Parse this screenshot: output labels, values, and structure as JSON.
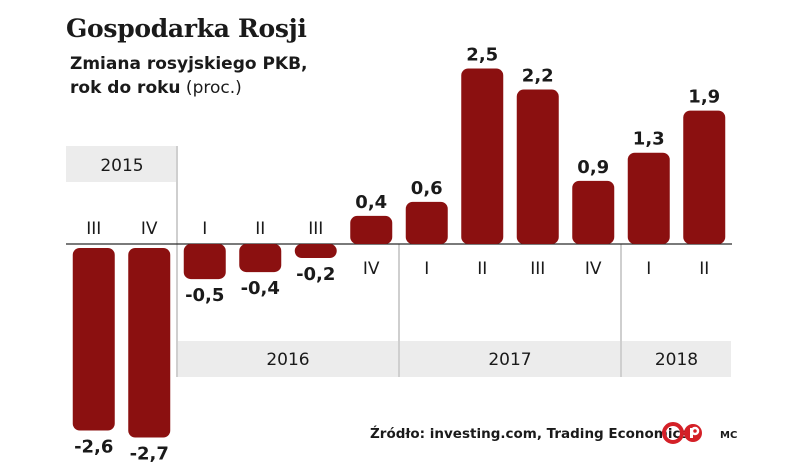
{
  "header": {
    "title": "Gospodarka Rosji",
    "subtitle_line1": "Zmiana rosyjskiego PKB,",
    "subtitle_line2": "rok do roku",
    "subtitle_unit": " (proc.)"
  },
  "chart_data": {
    "type": "bar",
    "title": "Gospodarka Rosji",
    "subtitle": "Zmiana rosyjskiego PKB, rok do roku (proc.)",
    "xlabel": "",
    "ylabel": "",
    "categories": [
      "III",
      "IV",
      "I",
      "II",
      "III",
      "IV",
      "I",
      "II",
      "III",
      "IV",
      "I",
      "II"
    ],
    "years": [
      "2015",
      "2015",
      "2016",
      "2016",
      "2016",
      "2016",
      "2017",
      "2017",
      "2017",
      "2017",
      "2018",
      "2018"
    ],
    "values": [
      -2.6,
      -2.7,
      -0.5,
      -0.4,
      -0.2,
      0.4,
      0.6,
      2.5,
      2.2,
      0.9,
      1.3,
      1.9
    ],
    "value_labels": [
      "-2,6",
      "-2,7",
      "-0,5",
      "-0,4",
      "-0,2",
      "0,4",
      "0,6",
      "2,5",
      "2,2",
      "0,9",
      "1,3",
      "1,9"
    ],
    "year_groups": [
      {
        "label": "2015",
        "from": 0,
        "to": 1
      },
      {
        "label": "2016",
        "from": 2,
        "to": 5
      },
      {
        "label": "2017",
        "from": 6,
        "to": 9
      },
      {
        "label": "2018",
        "from": 10,
        "to": 11
      }
    ],
    "ylim": [
      -2.7,
      2.5
    ],
    "grid": false,
    "legend": "none",
    "bar_color": "#8b1010"
  },
  "footer": {
    "source": "Źródło: investing.com, Trading Economics",
    "logo": "cp-logo",
    "author": "MC"
  },
  "colors": {
    "bar": "#8b1010",
    "band": "#ececec",
    "text": "#1a1a1a",
    "logo": "#d42027"
  }
}
